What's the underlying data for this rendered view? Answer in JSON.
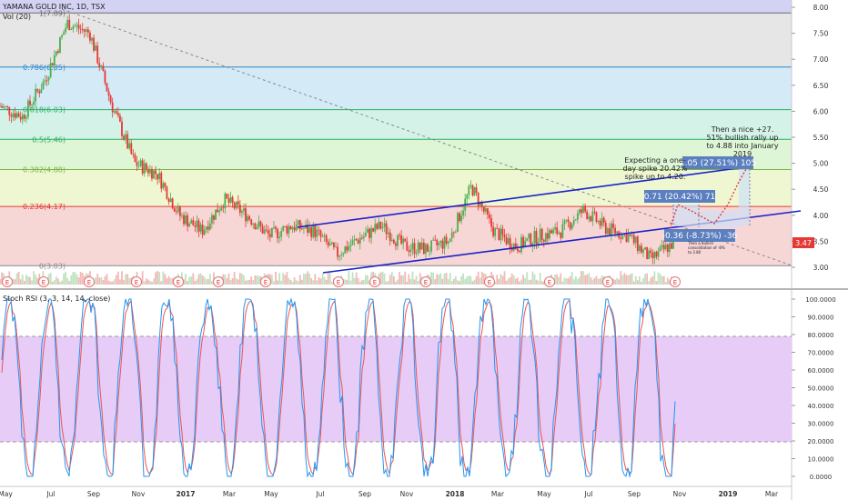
{
  "header": {
    "title": "YAMANA GOLD INC, 1D, TSX",
    "volume_label": "Vol (20)"
  },
  "colors": {
    "up": "#4caf50",
    "down": "#e53935",
    "channel": "#1a23c8",
    "rsi_k": "#2196f3",
    "rsi_d": "#ef5350",
    "rsi_band": "#e6ccf7"
  },
  "price_axis": {
    "min": 2.85,
    "max": 8.05,
    "ticks": [
      "8.00",
      "7.50",
      "7.00",
      "6.50",
      "6.00",
      "5.50",
      "5.00",
      "4.50",
      "4.00",
      "3.50",
      "3.00"
    ],
    "last_price": "3.47"
  },
  "fib_levels": [
    {
      "label": "1(7.89)",
      "value": 7.89,
      "fill": "#d4d2f3"
    },
    {
      "label": "0.786(6.85)",
      "value": 6.85,
      "fill": "#e6e6e6"
    },
    {
      "label": "0.618(6.03)",
      "value": 6.03,
      "fill": "#d4eaf7"
    },
    {
      "label": "0.5(5.46)",
      "value": 5.46,
      "fill": "#d5f2e9"
    },
    {
      "label": "0.382(4.88)",
      "value": 4.88,
      "fill": "#def5d6"
    },
    {
      "label": "0.236(4.17)",
      "value": 4.17,
      "fill": "#eef7d2"
    },
    {
      "label": "0(3.03)",
      "value": 3.03,
      "fill": "#f7d6d6"
    }
  ],
  "time_axis": [
    "May",
    "Jul",
    "Sep",
    "Nov",
    "2017",
    "Mar",
    "May",
    "Jul",
    "Sep",
    "Nov",
    "2018",
    "Mar",
    "May",
    "Jul",
    "Sep",
    "Nov",
    "2019",
    "Mar"
  ],
  "earnings_marker": "E",
  "annotations": {
    "forecast_note": "Expecting a one-day spike 20.42% spike up to 4.20.",
    "rally_note": "Then a nice +27. 51% bullish rally up to 4.88 into January 2019",
    "small_note": "Then a bullish consolidation of -8% to 3.80",
    "box_up1": "0.71 (20.42%) 71",
    "box_down": "-0.36 (-8.73%) -36",
    "box_up2": "1.05 (27.51%) 105"
  },
  "rsi": {
    "label": "Stoch RSI (3, 3, 14, 14, close)",
    "ticks": [
      "100.0000",
      "90.0000",
      "80.0000",
      "70.0000",
      "60.0000",
      "50.0000",
      "40.0000",
      "30.0000",
      "20.0000",
      "10.0000",
      "0.0000"
    ],
    "upper_band": 80,
    "lower_band": 20
  },
  "chart_data": {
    "type": "line",
    "title": "YAMANA GOLD INC, 1D, TSX",
    "series": [
      {
        "name": "price",
        "x": [
          "2016-04",
          "2016-05",
          "2016-06",
          "2016-07",
          "2016-08",
          "2016-09",
          "2016-10",
          "2016-11",
          "2016-12",
          "2017-01",
          "2017-02",
          "2017-03",
          "2017-04",
          "2017-05",
          "2017-06",
          "2017-07",
          "2017-08",
          "2017-09",
          "2017-10",
          "2017-11",
          "2017-12",
          "2018-01",
          "2018-02",
          "2018-03",
          "2018-04",
          "2018-05",
          "2018-06",
          "2018-07",
          "2018-08",
          "2018-09",
          "2018-10"
        ],
        "values": [
          6.1,
          5.9,
          6.6,
          7.7,
          7.5,
          6.1,
          5.0,
          4.8,
          4.0,
          3.7,
          4.3,
          4.0,
          3.6,
          3.8,
          3.7,
          3.25,
          3.55,
          3.8,
          3.4,
          3.35,
          3.5,
          4.55,
          3.7,
          3.4,
          3.6,
          3.7,
          4.1,
          3.75,
          3.6,
          3.15,
          3.47
        ]
      }
    ],
    "ylim": [
      2.85,
      8.05
    ],
    "channel": {
      "start": [
        "2017-07",
        2.95
      ],
      "end": [
        "2019-03",
        4.1
      ],
      "upper_start": [
        "2017-06",
        3.8
      ],
      "upper_end": [
        "2019-01",
        4.9
      ]
    },
    "stoch_rsi_ylim": [
      0,
      100
    ]
  }
}
